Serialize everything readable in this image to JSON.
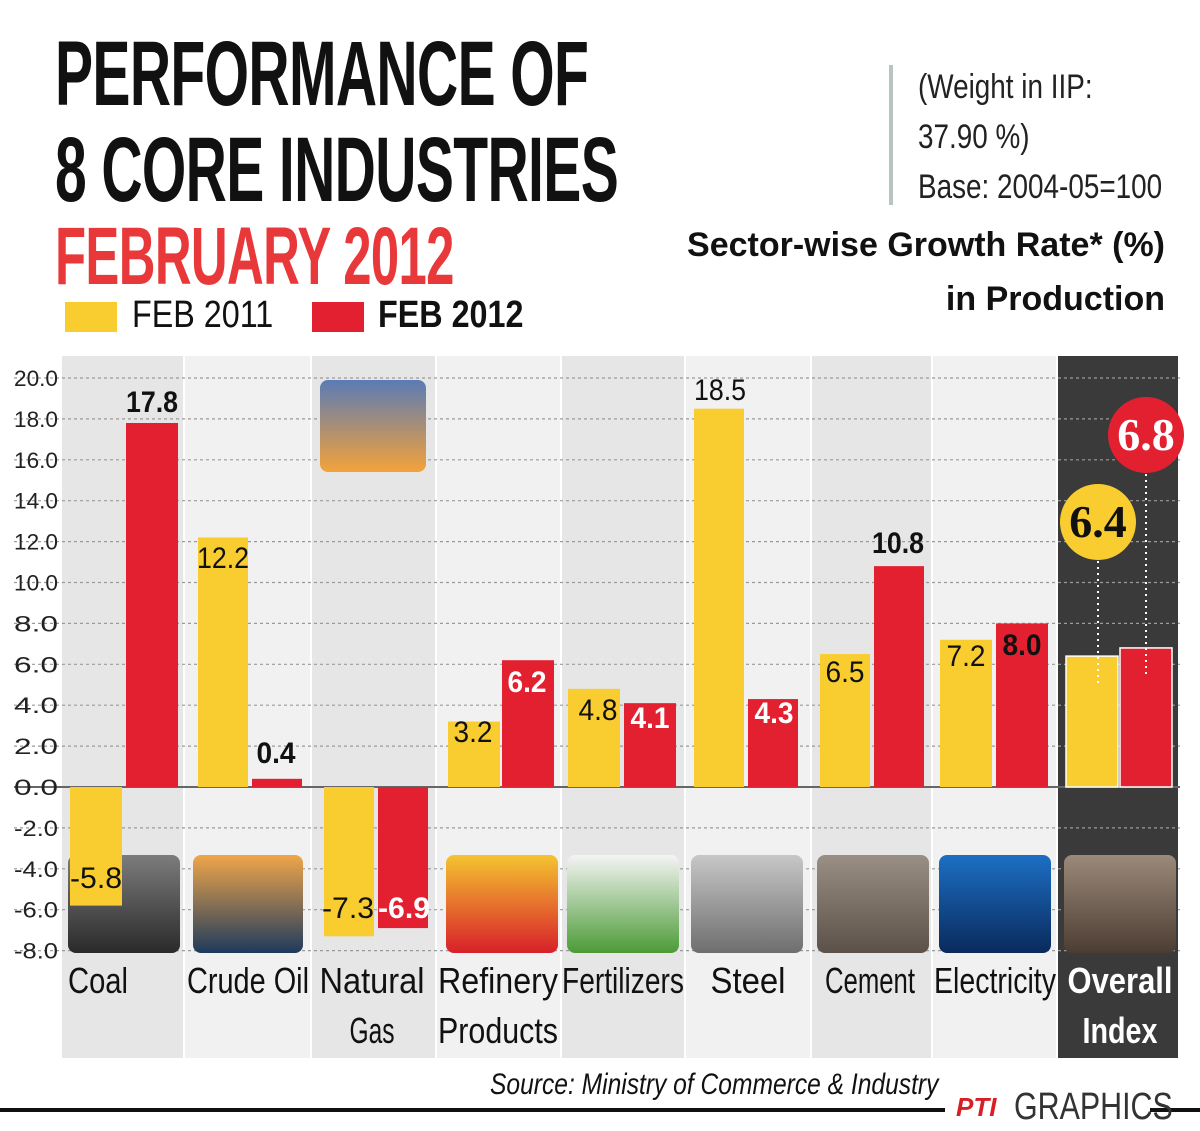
{
  "header": {
    "title_line1": "PERFORMANCE OF",
    "title_line2": "8 CORE INDUSTRIES",
    "title_line3": "FEBRUARY 2012",
    "weight_line1": "(Weight in IIP:",
    "weight_line2": "37.90 %)",
    "weight_line3": "Base: 2004-05=100",
    "subtitle_line1": "Sector-wise Growth Rate* (%)",
    "subtitle_line2": "in Production"
  },
  "legend": {
    "feb2011": "FEB 2011",
    "feb2012": "FEB 2012"
  },
  "colors": {
    "feb2011": "#f9cd2f",
    "feb2012": "#e3202f",
    "highlight_panel": "#3a3a3a",
    "panel_light": "#e6e6e6"
  },
  "chart_data": {
    "type": "bar",
    "categories": [
      "Coal",
      "Crude Oil",
      "Natural Gas",
      "Refinery Products",
      "Fertilizers",
      "Steel",
      "Cement",
      "Electricity",
      "Overall Index"
    ],
    "category_lines": [
      [
        "Coal"
      ],
      [
        "Crude Oil"
      ],
      [
        "Natural",
        "Gas"
      ],
      [
        "Refinery",
        "Products"
      ],
      [
        "Fertilizers"
      ],
      [
        "Steel"
      ],
      [
        "Cement"
      ],
      [
        "Electricity"
      ],
      [
        "Overall",
        "Index"
      ]
    ],
    "series": [
      {
        "name": "FEB 2011",
        "values": [
          -5.8,
          12.2,
          -7.3,
          3.2,
          4.8,
          18.5,
          6.5,
          7.2,
          6.4
        ]
      },
      {
        "name": "FEB 2012",
        "values": [
          17.8,
          0.4,
          -6.9,
          6.2,
          4.1,
          4.3,
          10.8,
          8.0,
          6.8
        ]
      }
    ],
    "data_labels": [
      [
        "-5.8",
        "12.2",
        "-7.3",
        "3.2",
        "4.8",
        "18.5",
        "6.5",
        "7.2",
        "6.4"
      ],
      [
        "17.8",
        "0.4",
        "-6.9",
        "6.2",
        "4.1",
        "4.3",
        "10.8",
        "8.0",
        "6.8"
      ]
    ],
    "yticks": [
      "20.0",
      "18.0",
      "16.0",
      "14.0",
      "12.0",
      "10.0",
      "8.0",
      "6.0",
      "4.0",
      "2.0",
      "0.0",
      "-2.0",
      "-4.0",
      "-6.0",
      "-8.0"
    ],
    "ylim": [
      -8,
      20
    ],
    "grid": true,
    "legend_position": "top-left",
    "icons": [
      "coal-icon",
      "oil-pump-icon",
      "gas-flame-icon",
      "fuel-nozzle-icon",
      "fertilizer-sack-icon",
      "steel-bars-icon",
      "cement-icon",
      "light-bulb-icon",
      "construction-crane-icon"
    ]
  },
  "footer": {
    "source": "Source: Ministry of Commerce & Industry",
    "pti": "PTI",
    "graphics": "GRAPHICS"
  }
}
